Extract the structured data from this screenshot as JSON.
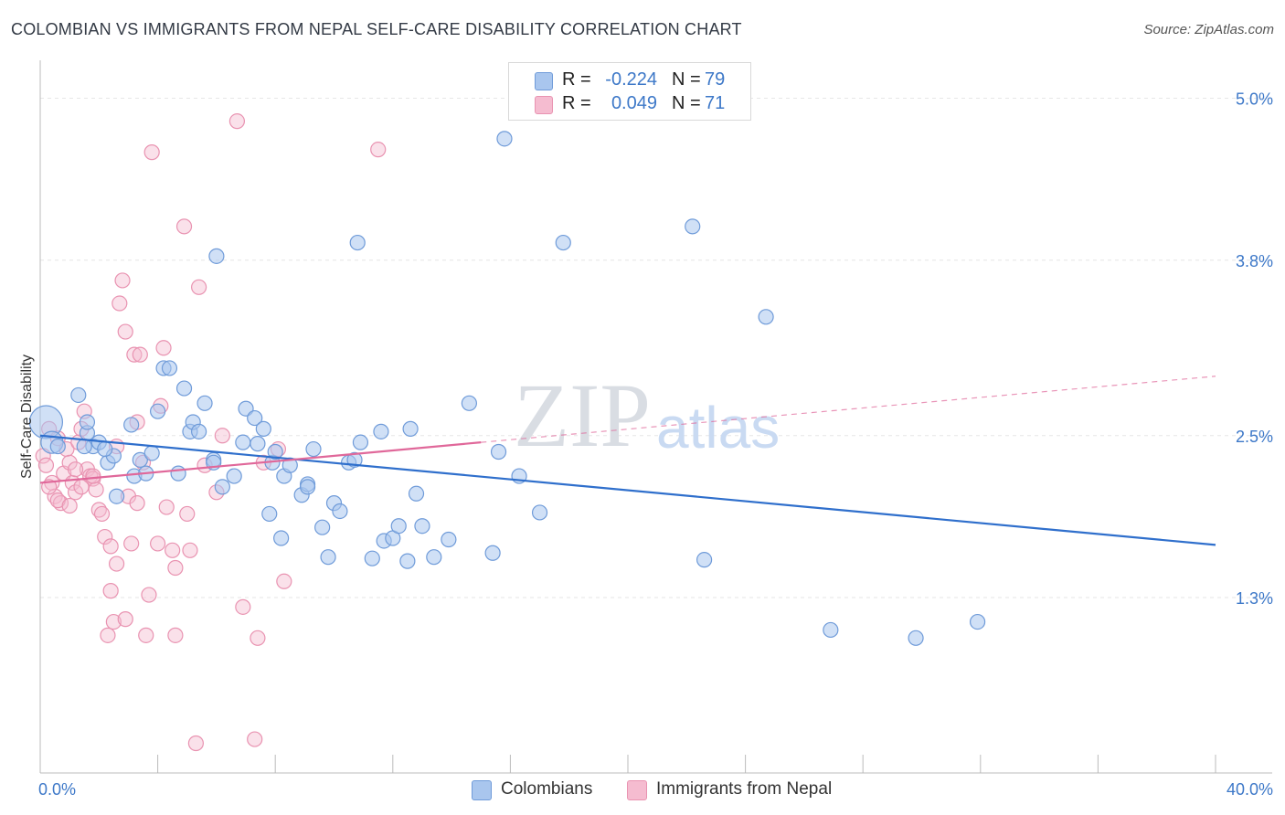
{
  "title": "COLOMBIAN VS IMMIGRANTS FROM NEPAL SELF-CARE DISABILITY CORRELATION CHART",
  "source": "Source: ZipAtlas.com",
  "watermark": {
    "zip": "ZIP",
    "atlas": "atlas"
  },
  "colors": {
    "blue_fill": "#a9c6ee",
    "blue_stroke": "#6f9bd9",
    "blue_line": "#2f6fcc",
    "pink_fill": "#f5bcd0",
    "pink_stroke": "#e993b1",
    "pink_line": "#e0689a",
    "grid": "#e6e6e6",
    "tick_text": "#3d78c8"
  },
  "stats": {
    "blue": {
      "r_label": "R =",
      "r_value": "-0.224",
      "n_label": "N =",
      "n_value": "79"
    },
    "pink": {
      "r_label": "R =",
      "r_value": "0.049",
      "n_label": "N =",
      "n_value": "71"
    }
  },
  "legend": {
    "blue": "Colombians",
    "pink": "Immigrants from Nepal"
  },
  "chart_data": {
    "type": "scatter",
    "title": "COLOMBIAN VS IMMIGRANTS FROM NEPAL SELF-CARE DISABILITY CORRELATION CHART",
    "xlabel": "",
    "ylabel": "Self-Care Disability",
    "xlim": [
      0,
      40
    ],
    "ylim": [
      0,
      5.2
    ],
    "x_tick_labels": [
      "0.0%",
      "40.0%"
    ],
    "y_ticks": [
      1.3,
      2.5,
      3.8,
      5.0
    ],
    "y_tick_labels": [
      "1.3%",
      "2.5%",
      "3.8%",
      "5.0%"
    ],
    "grid": "horizontal dashed",
    "legend_position": "bottom",
    "series": [
      {
        "name": "Colombians",
        "color": "#a9c6ee",
        "trend": {
          "x": [
            0,
            40
          ],
          "y": [
            2.5,
            1.69
          ]
        },
        "points": [
          [
            0.2,
            2.6
          ],
          [
            0.4,
            2.45
          ],
          [
            0.6,
            2.42
          ],
          [
            1.3,
            2.8
          ],
          [
            1.6,
            2.52
          ],
          [
            1.8,
            2.42
          ],
          [
            1.6,
            2.6
          ],
          [
            2.0,
            2.45
          ],
          [
            2.3,
            2.3
          ],
          [
            2.5,
            2.35
          ],
          [
            2.6,
            2.05
          ],
          [
            3.1,
            2.58
          ],
          [
            3.2,
            2.2
          ],
          [
            3.4,
            2.32
          ],
          [
            3.6,
            2.22
          ],
          [
            3.8,
            2.37
          ],
          [
            4.0,
            2.68
          ],
          [
            4.2,
            3.0
          ],
          [
            4.4,
            3.0
          ],
          [
            4.7,
            2.22
          ],
          [
            4.9,
            2.85
          ],
          [
            5.1,
            2.53
          ],
          [
            5.2,
            2.6
          ],
          [
            5.4,
            2.53
          ],
          [
            5.6,
            2.74
          ],
          [
            5.9,
            2.32
          ],
          [
            6.0,
            3.83
          ],
          [
            6.2,
            2.12
          ],
          [
            6.6,
            2.2
          ],
          [
            6.9,
            2.45
          ],
          [
            7.0,
            2.7
          ],
          [
            7.3,
            2.63
          ],
          [
            7.4,
            2.44
          ],
          [
            7.6,
            2.55
          ],
          [
            7.8,
            1.92
          ],
          [
            7.9,
            2.3
          ],
          [
            8.2,
            1.74
          ],
          [
            8.3,
            2.2
          ],
          [
            8.5,
            2.28
          ],
          [
            8.9,
            2.06
          ],
          [
            9.1,
            2.14
          ],
          [
            9.3,
            2.4
          ],
          [
            9.6,
            1.82
          ],
          [
            9.8,
            1.6
          ],
          [
            10.0,
            2.0
          ],
          [
            10.2,
            1.94
          ],
          [
            10.5,
            2.3
          ],
          [
            10.7,
            2.32
          ],
          [
            10.8,
            3.93
          ],
          [
            10.9,
            2.45
          ],
          [
            11.3,
            1.59
          ],
          [
            11.6,
            2.53
          ],
          [
            11.7,
            1.72
          ],
          [
            12.0,
            1.74
          ],
          [
            12.2,
            1.83
          ],
          [
            12.5,
            1.57
          ],
          [
            12.6,
            2.55
          ],
          [
            12.8,
            2.07
          ],
          [
            13.0,
            1.83
          ],
          [
            13.4,
            1.6
          ],
          [
            13.9,
            1.73
          ],
          [
            14.6,
            2.74
          ],
          [
            15.4,
            1.63
          ],
          [
            15.6,
            2.38
          ],
          [
            15.8,
            4.7
          ],
          [
            16.3,
            2.2
          ],
          [
            17.0,
            1.93
          ],
          [
            17.8,
            3.93
          ],
          [
            22.2,
            4.05
          ],
          [
            22.6,
            1.58
          ],
          [
            24.7,
            3.38
          ],
          [
            26.9,
            1.06
          ],
          [
            29.8,
            1.0
          ],
          [
            31.9,
            1.12
          ],
          [
            1.5,
            2.42
          ],
          [
            2.2,
            2.4
          ],
          [
            5.9,
            2.3
          ],
          [
            8.0,
            2.38
          ],
          [
            9.1,
            2.12
          ]
        ]
      },
      {
        "name": "Immigrants from Nepal",
        "color": "#f5bcd0",
        "trend": {
          "x": [
            0,
            15
          ],
          "y": [
            2.15,
            2.45
          ],
          "dashed_to": {
            "x": 40,
            "y": 2.94
          }
        },
        "points": [
          [
            0.1,
            2.35
          ],
          [
            0.2,
            2.28
          ],
          [
            0.3,
            2.55
          ],
          [
            0.4,
            2.15
          ],
          [
            0.5,
            2.05
          ],
          [
            0.6,
            2.48
          ],
          [
            0.7,
            2.0
          ],
          [
            0.8,
            2.22
          ],
          [
            0.9,
            2.4
          ],
          [
            1.0,
            2.3
          ],
          [
            1.1,
            2.15
          ],
          [
            1.2,
            2.08
          ],
          [
            1.3,
            2.45
          ],
          [
            1.4,
            2.55
          ],
          [
            1.5,
            2.68
          ],
          [
            1.6,
            2.25
          ],
          [
            1.7,
            2.2
          ],
          [
            1.8,
            2.18
          ],
          [
            1.9,
            2.1
          ],
          [
            2.0,
            1.95
          ],
          [
            2.1,
            1.92
          ],
          [
            2.2,
            1.75
          ],
          [
            2.3,
            1.02
          ],
          [
            2.4,
            1.35
          ],
          [
            2.5,
            1.12
          ],
          [
            2.6,
            1.55
          ],
          [
            2.7,
            3.48
          ],
          [
            2.8,
            3.65
          ],
          [
            2.9,
            3.27
          ],
          [
            3.0,
            2.05
          ],
          [
            3.1,
            1.7
          ],
          [
            3.2,
            3.1
          ],
          [
            3.3,
            2.6
          ],
          [
            3.4,
            3.1
          ],
          [
            3.5,
            2.3
          ],
          [
            3.6,
            1.02
          ],
          [
            3.7,
            1.32
          ],
          [
            3.8,
            4.6
          ],
          [
            4.0,
            1.7
          ],
          [
            4.1,
            2.72
          ],
          [
            4.2,
            3.15
          ],
          [
            4.3,
            1.97
          ],
          [
            4.5,
            1.65
          ],
          [
            4.6,
            1.52
          ],
          [
            4.9,
            4.05
          ],
          [
            5.0,
            1.92
          ],
          [
            5.1,
            1.65
          ],
          [
            5.3,
            0.22
          ],
          [
            5.4,
            3.6
          ],
          [
            5.6,
            2.28
          ],
          [
            6.0,
            2.08
          ],
          [
            6.2,
            2.5
          ],
          [
            6.7,
            4.83
          ],
          [
            6.9,
            1.23
          ],
          [
            7.3,
            0.25
          ],
          [
            7.4,
            1.0
          ],
          [
            7.6,
            2.3
          ],
          [
            8.1,
            2.4
          ],
          [
            8.3,
            1.42
          ],
          [
            11.5,
            4.62
          ],
          [
            0.3,
            2.12
          ],
          [
            0.6,
            2.02
          ],
          [
            1.0,
            1.98
          ],
          [
            1.4,
            2.12
          ],
          [
            1.8,
            2.2
          ],
          [
            2.4,
            1.68
          ],
          [
            2.9,
            1.14
          ],
          [
            3.3,
            2.0
          ],
          [
            4.6,
            1.02
          ],
          [
            2.6,
            2.42
          ],
          [
            1.2,
            2.25
          ]
        ]
      }
    ]
  }
}
